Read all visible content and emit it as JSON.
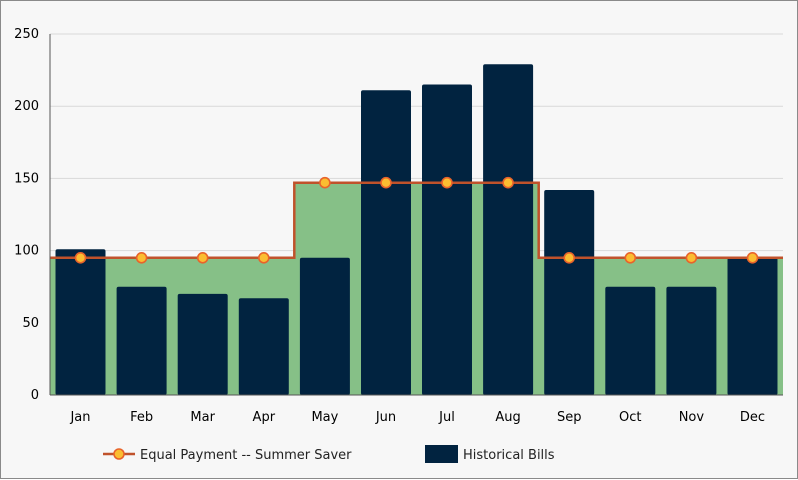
{
  "chart_data": {
    "type": "bar",
    "categories": [
      "Jan",
      "Feb",
      "Mar",
      "Apr",
      "May",
      "Jun",
      "Jul",
      "Aug",
      "Sep",
      "Oct",
      "Nov",
      "Dec"
    ],
    "ylim": [
      0,
      250
    ],
    "yticks": [
      0,
      50,
      100,
      150,
      200,
      250
    ],
    "grid": true,
    "legend_position": "bottom-left",
    "series": [
      {
        "name": "Historical Bills",
        "kind": "bar",
        "color": "#012340",
        "values": [
          101,
          75,
          70,
          67,
          95,
          211,
          215,
          229,
          142,
          75,
          75,
          95
        ]
      },
      {
        "name": "Equal Payment -- Summer Saver",
        "kind": "step-line-area",
        "line_color": "#c0522b",
        "area_color": "#86c087",
        "marker_fill": "#fbbd31",
        "values": [
          95,
          95,
          95,
          95,
          147,
          147,
          147,
          147,
          95,
          95,
          95,
          95
        ]
      }
    ]
  }
}
